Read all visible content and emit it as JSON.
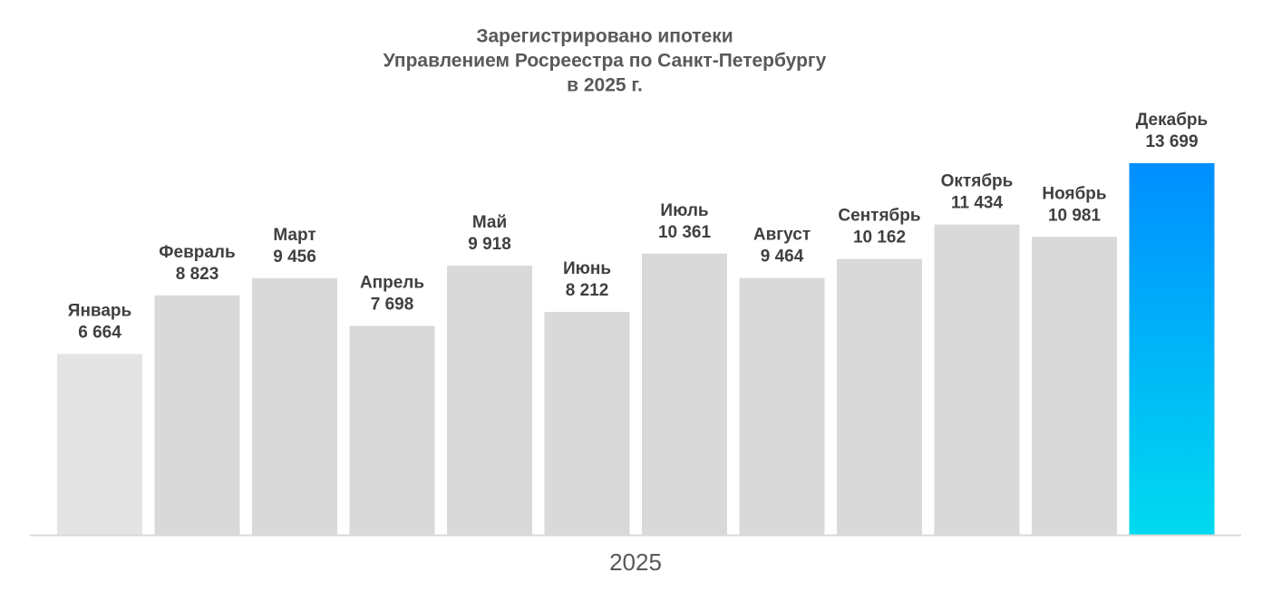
{
  "chart_data": {
    "type": "bar",
    "title": [
      "Зарегистрировано ипотеки",
      "Управлением Росреестра по Санкт-Петербургу",
      "в 2025 г."
    ],
    "x_label": "2025",
    "categories": [
      "Январь",
      "Февраль",
      "Март",
      "Апрель",
      "Май",
      "Июнь",
      "Июль",
      "Август",
      "Сентябрь",
      "Октябрь",
      "Ноябрь",
      "Декабрь"
    ],
    "values": [
      6664,
      8823,
      9456,
      7698,
      9918,
      8212,
      10361,
      9464,
      10162,
      11434,
      10981,
      13699
    ],
    "value_labels": [
      "6 664",
      "8 823",
      "9 456",
      "7 698",
      "9 918",
      "8 212",
      "10 361",
      "9 464",
      "10 162",
      "11 434",
      "10 981",
      "13 699"
    ],
    "colors": [
      "#e4e4e4",
      "#d9d9d9",
      "#d9d9d9",
      "#d9d9d9",
      "#d9d9d9",
      "#d9d9d9",
      "#d9d9d9",
      "#d9d9d9",
      "#d9d9d9",
      "#d9d9d9",
      "#d9d9d9",
      [
        "#008eff",
        "#00daf0"
      ]
    ],
    "ylim": [
      0,
      14000
    ]
  }
}
